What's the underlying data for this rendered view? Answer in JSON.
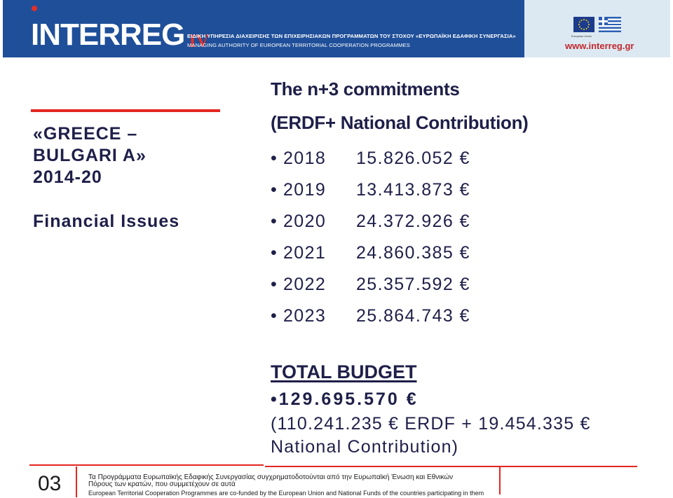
{
  "header": {
    "logo_text": "INTERREG",
    "logo_suffix": "IV",
    "authority_greek": "ΕΙΔΙΚΗ ΥΠΗΡΕΣΙΑ ΔΙΑΧΕΙΡΙΣΗΣ ΤΩΝ ΕΠΙΧΕΙΡΗΣΙΑΚΩΝ ΠΡΟΓΡΑΜΜΑΤΩΝ ΤΟΥ ΣΤΟΧΟΥ «ΕΥΡΩΠΑΪΚΗ ΕΔΑΦΙΚΗ ΣΥΝΕΡΓΑΣΙΑ»",
    "authority_english": "MANAGING AUTHORITY OF EUROPEAN TERRITORIAL COOPERATION PROGRAMMES",
    "eu_caption": "European Union",
    "website": "www.interreg.gr",
    "colors": {
      "banner": "#1f4f99",
      "accent_red": "#e3261f"
    }
  },
  "left_panel": {
    "title_lines": [
      "«GREECE –",
      "BULGARI A»",
      "2014-20"
    ],
    "subtitle": "Financial Issues"
  },
  "main": {
    "title": "The n+3 commitments",
    "subtitle": "(ERDF+ National Contribution)",
    "commitments": [
      {
        "bullet": "•",
        "year": "2018",
        "amount": "15.826.052 €"
      },
      {
        "bullet": "•",
        "year": "2019",
        "amount": "13.413.873 €"
      },
      {
        "bullet": "•",
        "year": "2020",
        "amount": "24.372.926 €"
      },
      {
        "bullet": "•",
        "year": "2021",
        "amount": "24.860.385 €"
      },
      {
        "bullet": "•",
        "year": "2022",
        "amount": "25.357.592 €"
      },
      {
        "bullet": "•",
        "year": "2023",
        "amount": "25.864.743 €"
      }
    ],
    "total": {
      "title": "TOTAL BUDGET",
      "value": "•129.695.570 €",
      "detail_line1": "(110.241.235 € ERDF  + 19.454.335 €",
      "detail_line2": "National Contribution)"
    }
  },
  "footer": {
    "page_number": "03",
    "greek_note": "Τα Προγράμματα Ευρωπαϊκής Εδαφικής Συνεργασίας συγχρηματοδοτούνται από την Ευρωπαϊκή Ένωση και Εθνικών Πόρους των κρατών, που συμμετέχουν σε αυτά",
    "english_note": "European Territorial Cooperation Programmes are co-funded by the European Union and National Funds of the countries participating in them"
  }
}
